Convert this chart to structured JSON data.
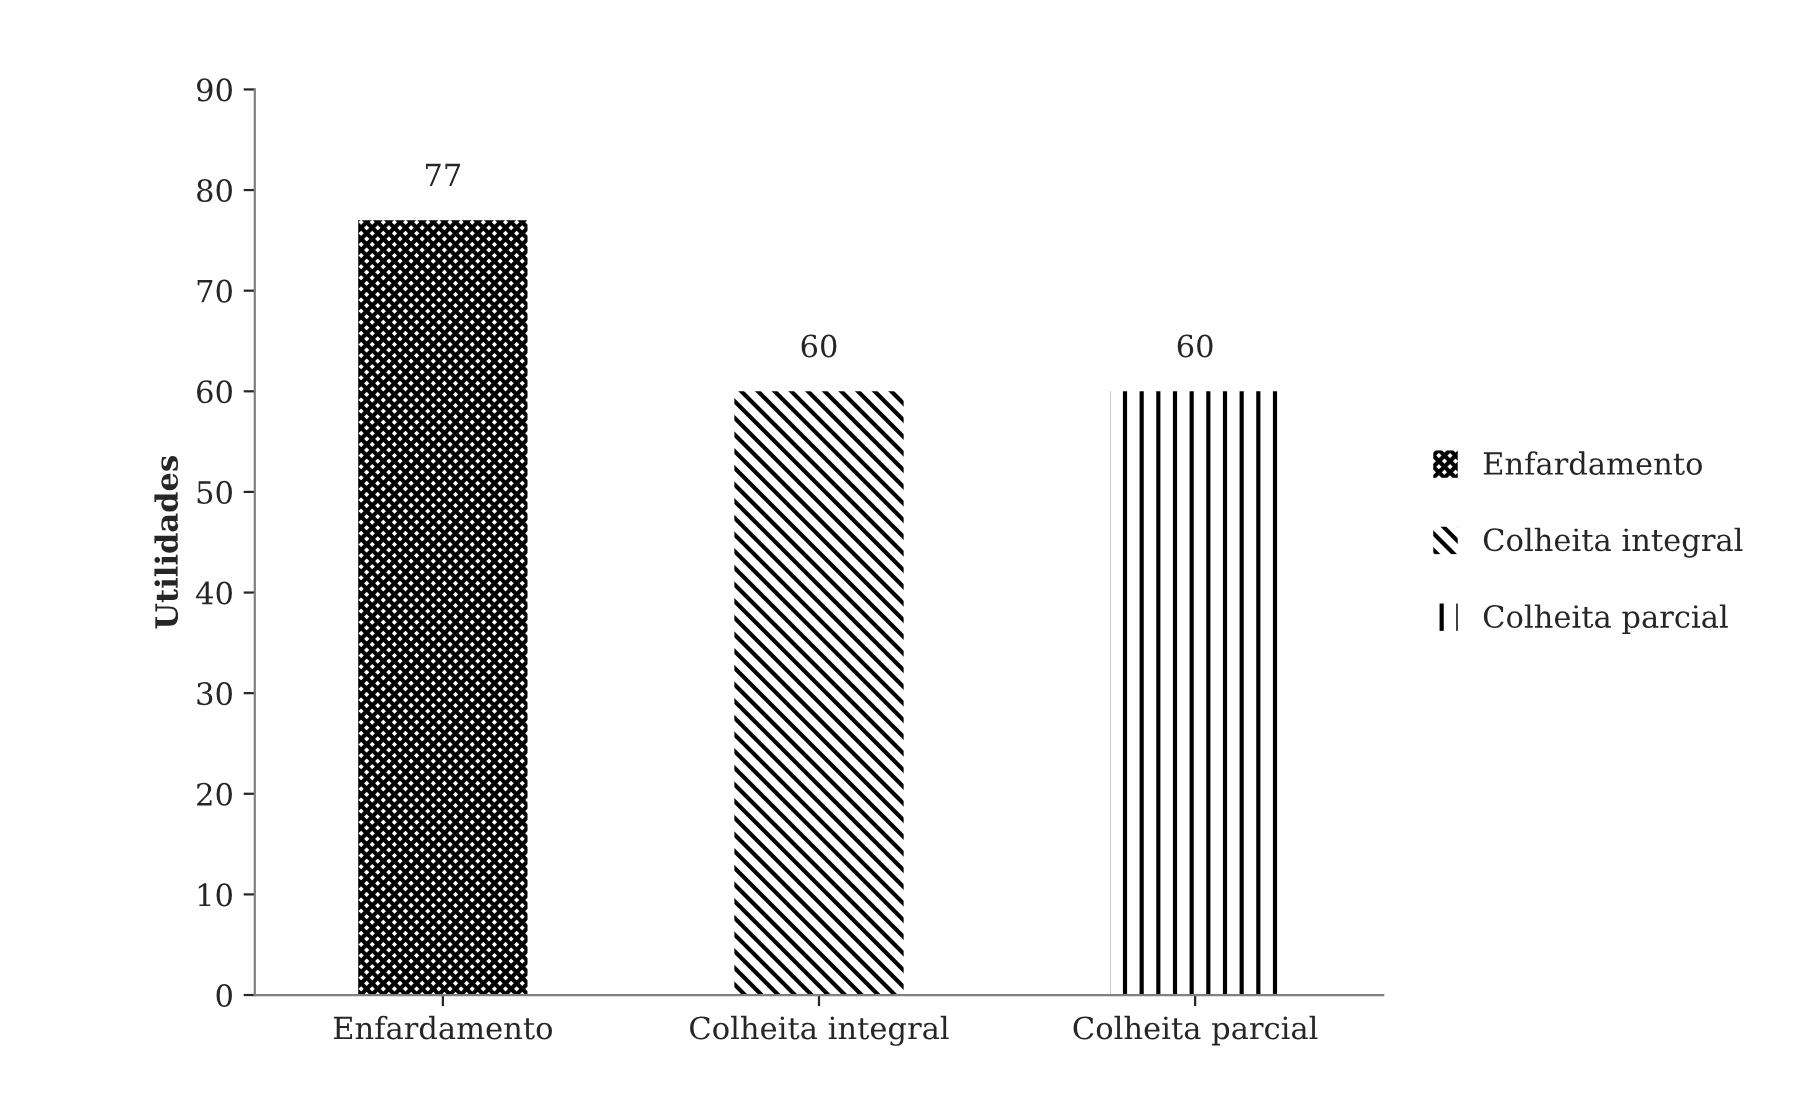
{
  "chart_data": {
    "type": "bar",
    "ylabel": "Utilidades",
    "categories": [
      "Enfardamento",
      "Colheita integral",
      "Colheita parcial"
    ],
    "series": [
      {
        "name": "Enfardamento",
        "color": "#000000",
        "values": [
          77,
          null,
          null
        ]
      },
      {
        "name": "Colheita integral",
        "color": "#000000",
        "values": [
          null,
          60,
          null
        ]
      },
      {
        "name": "Colheita parcial",
        "color": "#000000",
        "values": [
          null,
          null,
          60
        ]
      }
    ],
    "ylim": [
      0,
      90
    ],
    "yticks": [
      0,
      10,
      20,
      30,
      40,
      50,
      60,
      70,
      80,
      90
    ],
    "data_labels": true,
    "legend": "right",
    "grid": false
  }
}
